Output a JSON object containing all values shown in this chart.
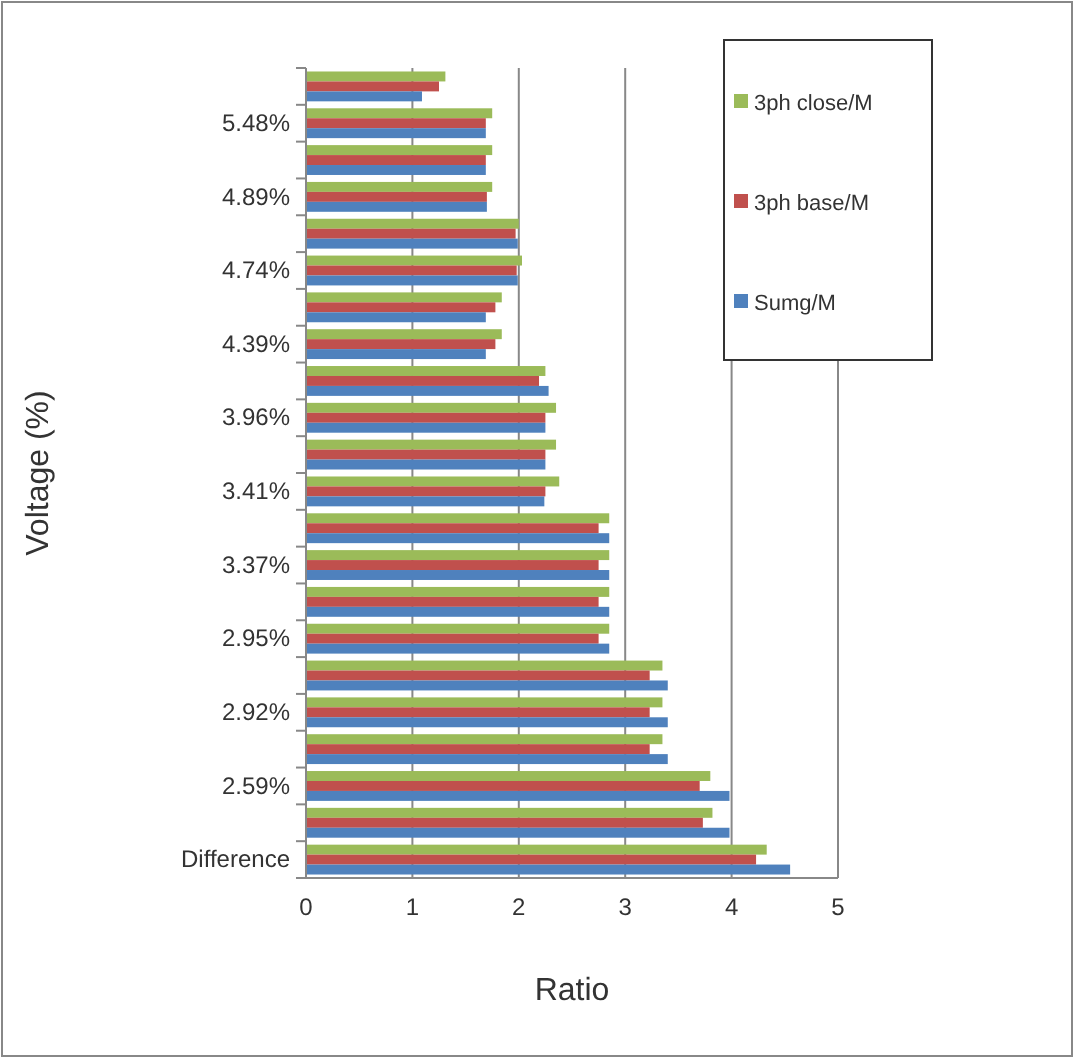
{
  "chart_data": {
    "type": "bar",
    "orientation": "horizontal",
    "xlabel": "Ratio",
    "ylabel": "Voltage (%)",
    "categories": [
      null,
      "5.48%",
      null,
      "4.89%",
      null,
      "4.74%",
      null,
      "4.39%",
      null,
      "3.96%",
      null,
      "3.41%",
      null,
      "3.37%",
      null,
      "2.95%",
      null,
      "2.92%",
      null,
      "2.59%",
      null,
      "Difference"
    ],
    "series": [
      {
        "name": "3ph close/M",
        "color": "#9bbb59",
        "values": [
          1.31,
          1.75,
          1.75,
          1.75,
          2.0,
          2.03,
          1.84,
          1.84,
          2.25,
          2.35,
          2.35,
          2.38,
          2.85,
          2.85,
          2.85,
          2.85,
          3.35,
          3.35,
          3.35,
          3.8,
          3.82,
          4.33
        ]
      },
      {
        "name": "3ph base/M",
        "color": "#c0504d",
        "values": [
          1.25,
          1.69,
          1.69,
          1.7,
          1.97,
          1.98,
          1.78,
          1.78,
          2.19,
          2.25,
          2.25,
          2.25,
          2.75,
          2.75,
          2.75,
          2.75,
          3.23,
          3.23,
          3.23,
          3.7,
          3.73,
          4.23
        ]
      },
      {
        "name": "Sumg/M",
        "color": "#4f81bd",
        "values": [
          1.09,
          1.69,
          1.69,
          1.7,
          1.99,
          1.99,
          1.69,
          1.69,
          2.28,
          2.25,
          2.25,
          2.24,
          2.85,
          2.85,
          2.85,
          2.85,
          3.4,
          3.4,
          3.4,
          3.98,
          3.98,
          4.55
        ]
      }
    ],
    "xlim": [
      0,
      5
    ],
    "xticks": [
      0,
      1,
      2,
      3,
      4,
      5
    ],
    "grid": "x",
    "legend": "top right"
  }
}
